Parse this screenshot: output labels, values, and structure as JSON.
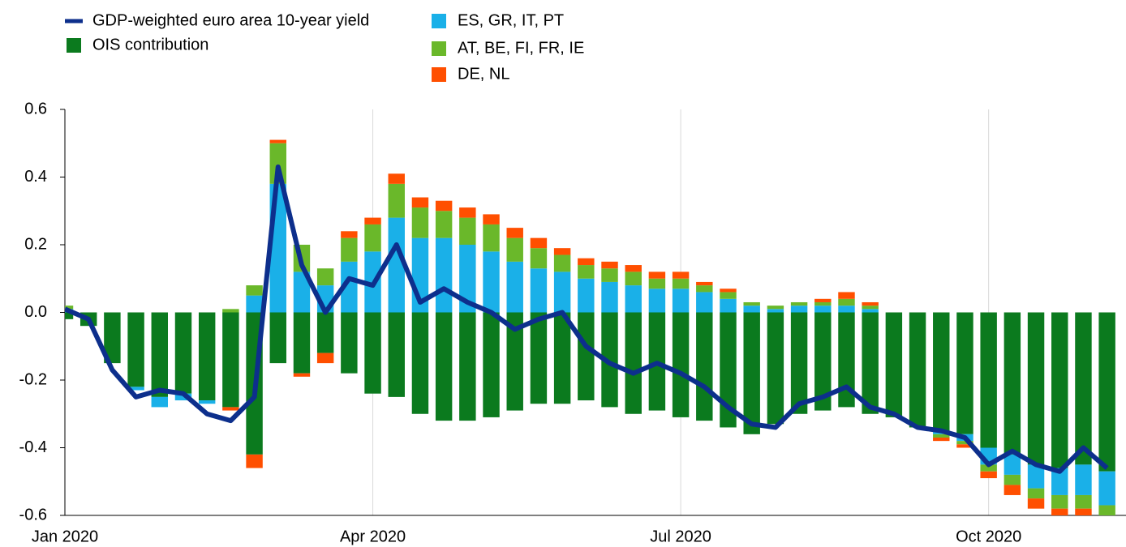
{
  "chart_data": {
    "type": "bar",
    "stacked": true,
    "categories": [
      "Jan 2020",
      null,
      null,
      null,
      null,
      null,
      null,
      null,
      null,
      null,
      null,
      null,
      null,
      "Apr 2020",
      null,
      null,
      null,
      null,
      null,
      null,
      null,
      null,
      null,
      null,
      null,
      null,
      "Jul 2020",
      null,
      null,
      null,
      null,
      null,
      null,
      null,
      null,
      null,
      null,
      null,
      null,
      "Oct 2020",
      null,
      null,
      null,
      null,
      null
    ],
    "series": [
      {
        "name": "GDP-weighted euro area 10-year yield",
        "type": "line",
        "color": "#0d2f8c",
        "values": [
          0.01,
          -0.02,
          -0.17,
          -0.25,
          -0.23,
          -0.24,
          -0.3,
          -0.32,
          -0.25,
          0.43,
          0.14,
          0.0,
          0.1,
          0.08,
          0.2,
          0.03,
          0.07,
          0.03,
          0.0,
          -0.05,
          -0.02,
          0.0,
          -0.1,
          -0.15,
          -0.18,
          -0.15,
          -0.18,
          -0.22,
          -0.28,
          -0.33,
          -0.34,
          -0.27,
          -0.25,
          -0.22,
          -0.28,
          -0.3,
          -0.34,
          -0.35,
          -0.37,
          -0.45,
          -0.41,
          -0.45,
          -0.47,
          -0.4,
          -0.46
        ]
      },
      {
        "name": "OIS contribution",
        "type": "bar",
        "color": "#0b7a1e",
        "values": [
          -0.02,
          -0.04,
          -0.15,
          -0.22,
          -0.25,
          -0.24,
          -0.26,
          -0.28,
          -0.42,
          -0.15,
          -0.18,
          -0.12,
          -0.18,
          -0.24,
          -0.25,
          -0.3,
          -0.32,
          -0.32,
          -0.31,
          -0.29,
          -0.27,
          -0.27,
          -0.26,
          -0.28,
          -0.3,
          -0.29,
          -0.31,
          -0.32,
          -0.34,
          -0.36,
          -0.33,
          -0.3,
          -0.29,
          -0.28,
          -0.3,
          -0.31,
          -0.34,
          -0.35,
          -0.36,
          -0.4,
          -0.42,
          -0.45,
          -0.46,
          -0.45,
          -0.47
        ]
      },
      {
        "name": "ES, GR, IT, PT",
        "type": "bar",
        "color": "#1ab0e8",
        "values": [
          0.01,
          0.0,
          0.0,
          -0.01,
          -0.03,
          -0.02,
          -0.01,
          0.0,
          0.05,
          0.38,
          0.12,
          0.08,
          0.15,
          0.18,
          0.28,
          0.22,
          0.22,
          0.2,
          0.18,
          0.15,
          0.13,
          0.12,
          0.1,
          0.09,
          0.08,
          0.07,
          0.07,
          0.06,
          0.04,
          0.02,
          0.01,
          0.02,
          0.02,
          0.02,
          0.01,
          0.0,
          0.0,
          -0.01,
          -0.02,
          -0.05,
          -0.06,
          -0.07,
          -0.08,
          -0.09,
          -0.1
        ]
      },
      {
        "name": "AT, BE, FI, FR, IE",
        "type": "bar",
        "color": "#6ab82a",
        "values": [
          0.01,
          0.0,
          0.0,
          0.0,
          0.0,
          0.0,
          0.0,
          0.01,
          0.03,
          0.12,
          0.08,
          0.05,
          0.07,
          0.08,
          0.1,
          0.09,
          0.08,
          0.08,
          0.08,
          0.07,
          0.06,
          0.05,
          0.04,
          0.04,
          0.04,
          0.03,
          0.03,
          0.02,
          0.02,
          0.01,
          0.01,
          0.01,
          0.01,
          0.02,
          0.01,
          0.0,
          0.0,
          -0.01,
          -0.01,
          -0.02,
          -0.03,
          -0.03,
          -0.04,
          -0.04,
          -0.05
        ]
      },
      {
        "name": "DE, NL",
        "type": "bar",
        "color": "#ff4f00",
        "values": [
          0.0,
          0.0,
          0.0,
          0.0,
          0.0,
          0.0,
          0.0,
          -0.01,
          -0.04,
          0.01,
          -0.01,
          -0.03,
          0.02,
          0.02,
          0.03,
          0.03,
          0.03,
          0.03,
          0.03,
          0.03,
          0.03,
          0.02,
          0.02,
          0.02,
          0.02,
          0.02,
          0.02,
          0.01,
          0.01,
          0.0,
          0.0,
          0.0,
          0.01,
          0.02,
          0.01,
          0.0,
          0.0,
          -0.01,
          -0.01,
          -0.02,
          -0.03,
          -0.03,
          -0.03,
          -0.03,
          -0.03
        ]
      }
    ],
    "ylim": [
      -0.6,
      0.6
    ],
    "yticks": [
      -0.6,
      -0.4,
      -0.2,
      {
        "value": 0,
        "label": "0.0"
      },
      0.2,
      0.4,
      0.6
    ],
    "grid": "x"
  }
}
